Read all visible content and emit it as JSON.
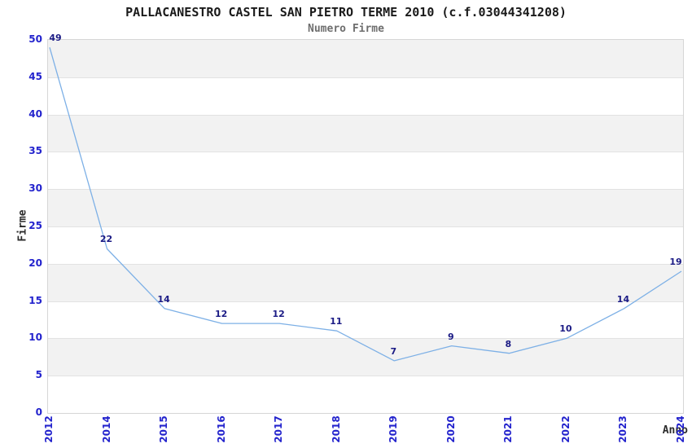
{
  "chart_data": {
    "type": "line",
    "title": "PALLACANESTRO CASTEL SAN PIETRO TERME 2010 (c.f.03044341208)",
    "subtitle": "Numero Firme",
    "xlabel": "Anno",
    "ylabel": "Firme",
    "categories": [
      "2012",
      "2014",
      "2015",
      "2016",
      "2017",
      "2018",
      "2019",
      "2020",
      "2021",
      "2022",
      "2023",
      "2024"
    ],
    "values": [
      49,
      22,
      14,
      12,
      12,
      11,
      7,
      9,
      8,
      10,
      14,
      19
    ],
    "yticks": [
      0,
      5,
      10,
      15,
      20,
      25,
      30,
      35,
      40,
      45,
      50
    ],
    "ylim": [
      0,
      50
    ],
    "grid": "horizontal-bands-alternating",
    "legend": "none",
    "colors": {
      "line": "#7db0e6",
      "tick_label": "#2323cd",
      "data_label": "#1b1b85",
      "band": "#f2f2f2",
      "gridline": "#e2e2e2",
      "plot_border": "#d6d6d6",
      "title": "#1a1a1a",
      "subtitle": "#6e6e6e",
      "axis_label": "#2b2b2b"
    }
  }
}
